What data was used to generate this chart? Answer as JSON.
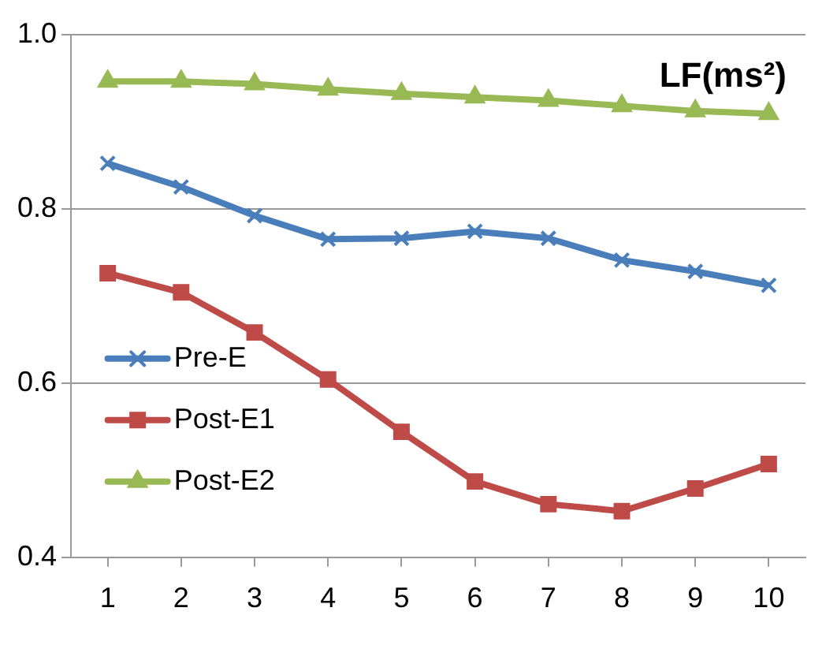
{
  "chart_data": {
    "type": "line",
    "title": "LF(ms²)",
    "categories": [
      "1",
      "2",
      "3",
      "4",
      "5",
      "6",
      "7",
      "8",
      "9",
      "10"
    ],
    "series": [
      {
        "name": "Pre-E",
        "color": "#4a7ebb",
        "marker": "cross",
        "values": [
          0.852,
          0.825,
          0.792,
          0.765,
          0.766,
          0.774,
          0.766,
          0.741,
          0.728,
          0.712
        ]
      },
      {
        "name": "Post-E1",
        "color": "#be4b48",
        "marker": "square",
        "values": [
          0.726,
          0.704,
          0.658,
          0.604,
          0.544,
          0.487,
          0.461,
          0.453,
          0.479,
          0.507
        ]
      },
      {
        "name": "Post-E2",
        "color": "#98b954",
        "marker": "triangle",
        "values": [
          0.946,
          0.946,
          0.943,
          0.937,
          0.932,
          0.928,
          0.924,
          0.918,
          0.912,
          0.909
        ]
      }
    ],
    "ylim": [
      0.4,
      1.0
    ],
    "yticks": [
      {
        "value": 0.4,
        "label": "0.4"
      },
      {
        "value": 0.6,
        "label": "0.6"
      },
      {
        "value": 0.8,
        "label": "0.8"
      },
      {
        "value": 1.0,
        "label": "1.0"
      }
    ],
    "grid": "y",
    "legend": "left",
    "line_style": "solid"
  }
}
